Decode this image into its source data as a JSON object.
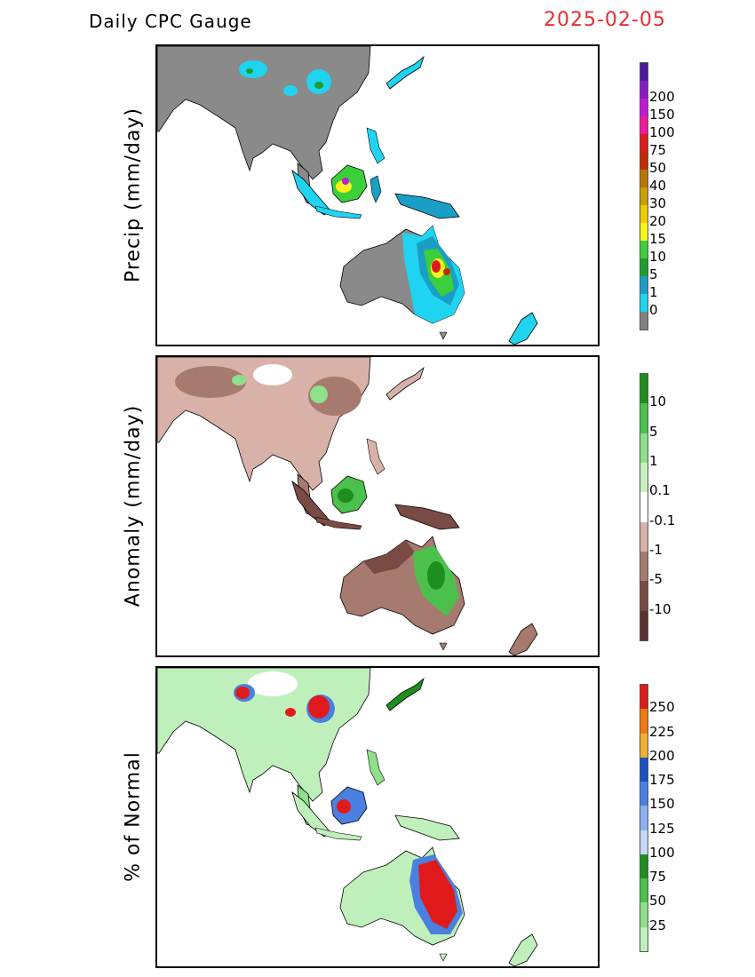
{
  "header": {
    "title": "Daily CPC Gauge",
    "date": "2025-02-05"
  },
  "colors": {
    "date": "#e03030",
    "land_gray": "#8a8a8a"
  },
  "panels": {
    "precip": {
      "label": "Precip (mm/day)",
      "colorbar": {
        "colors": [
          "#808080",
          "#1fd4f0",
          "#1b9ec5",
          "#1d9e2c",
          "#3ccf3c",
          "#f5f51b",
          "#f0cc00",
          "#caa000",
          "#b57700",
          "#c02a00",
          "#e01a1a",
          "#f01aa0",
          "#c01ad8",
          "#8a1ac8",
          "#4a1aa0"
        ],
        "labels": [
          "0",
          "1",
          "5",
          "10",
          "15",
          "20",
          "30",
          "40",
          "50",
          "75",
          "100",
          "150",
          "200"
        ]
      }
    },
    "anomaly": {
      "label": "Anomaly (mm/day)",
      "colorbar": {
        "colors": [
          "#5a3030",
          "#7a4a44",
          "#a67a6e",
          "#d8b2a8",
          "#ffffff",
          "#c8f0c0",
          "#8ee08a",
          "#4cc04c",
          "#1e8e1e"
        ],
        "labels": [
          "-10",
          "-5",
          "-1",
          "-0.1",
          "0.1",
          "1",
          "5",
          "10"
        ]
      }
    },
    "percent": {
      "label": "% of Normal",
      "colorbar": {
        "colors": [
          "#bff0bc",
          "#8ee08a",
          "#4cc04c",
          "#1e8e1e",
          "#c6d8f8",
          "#8cb0f0",
          "#4a80e0",
          "#1a50c0",
          "#f0b030",
          "#f07a10",
          "#e01a1a"
        ],
        "labels": [
          "25",
          "50",
          "75",
          "100",
          "125",
          "150",
          "175",
          "200",
          "225",
          "250"
        ]
      }
    }
  }
}
